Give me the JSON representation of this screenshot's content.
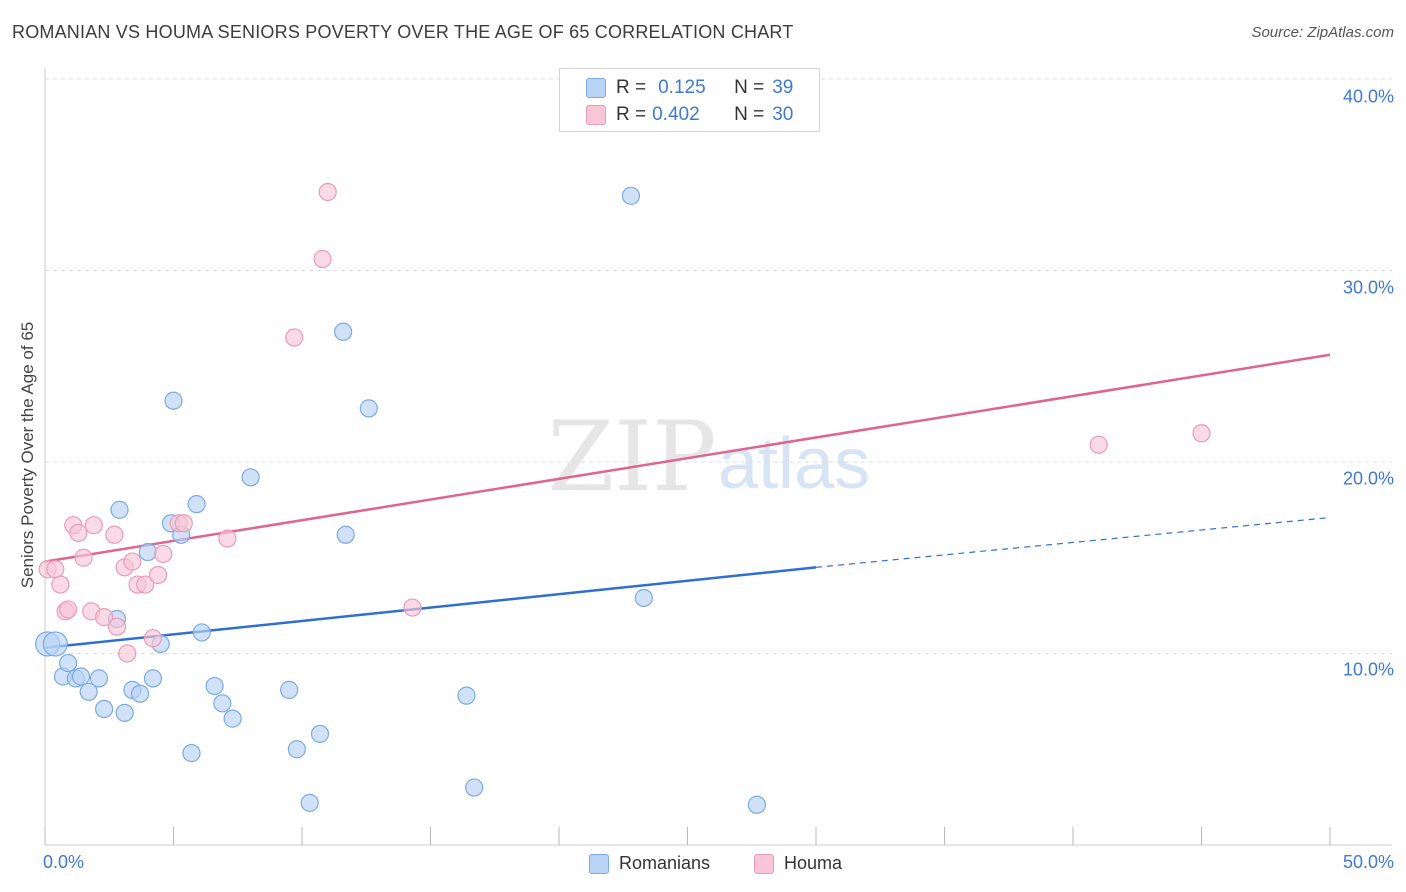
{
  "title": "ROMANIAN VS HOUMA SENIORS POVERTY OVER THE AGE OF 65 CORRELATION CHART",
  "source": "Source: ZipAtlas.com",
  "watermark": {
    "zip": "ZIP",
    "atlas": "atlas"
  },
  "legend": {
    "rows": [
      {
        "r_label": "R =",
        "r_value": "0.125",
        "n_label": "N =",
        "n_value": "39"
      },
      {
        "r_label": "R =",
        "r_value": "0.402",
        "n_label": "N =",
        "n_value": "30"
      }
    ]
  },
  "bottom_legend": {
    "romanians": "Romanians",
    "houma": "Houma"
  },
  "x_tick_labels": {
    "min": "0.0%",
    "max": "50.0%"
  },
  "y_tick_labels": [
    "40.0%",
    "30.0%",
    "20.0%",
    "10.0%"
  ],
  "colors": {
    "romanians_fill": "#b9d3f5",
    "romanians_stroke": "#7aaae6",
    "romanians_line": "#2f6fd0",
    "houma_fill": "#f8c6d6",
    "houma_stroke": "#ec9bb6",
    "houma_line": "#e0648e",
    "grid": "#dddddd",
    "tick_label": "#3f79d6"
  },
  "chart_data": {
    "type": "scatter",
    "title": "ROMANIAN VS HOUMA SENIORS POVERTY OVER THE AGE OF 65 CORRELATION CHART",
    "xlabel": "",
    "ylabel": "Seniors Poverty Over the Age of 65",
    "xlim": [
      0,
      50
    ],
    "ylim": [
      0,
      40
    ],
    "y_ticks": [
      10,
      20,
      30,
      40
    ],
    "grid": true,
    "series": [
      {
        "name": "Romanians",
        "r": 0.125,
        "n": 39,
        "trend": {
          "x0": 0,
          "y0": 10.3,
          "x1": 30,
          "y1": 14.5,
          "dashed_to_x": 50,
          "dashed_to_y": 17.1
        },
        "points": [
          [
            0.1,
            10.5
          ],
          [
            0.4,
            10.5
          ],
          [
            0.7,
            8.8
          ],
          [
            0.9,
            9.5
          ],
          [
            1.2,
            8.7
          ],
          [
            1.4,
            8.8
          ],
          [
            1.7,
            8.0
          ],
          [
            2.1,
            8.7
          ],
          [
            2.3,
            7.1
          ],
          [
            2.8,
            11.8
          ],
          [
            2.9,
            17.5
          ],
          [
            3.1,
            6.9
          ],
          [
            3.4,
            8.1
          ],
          [
            3.7,
            7.9
          ],
          [
            4.0,
            15.3
          ],
          [
            4.2,
            8.7
          ],
          [
            4.5,
            10.5
          ],
          [
            4.9,
            16.8
          ],
          [
            5.0,
            23.2
          ],
          [
            5.3,
            16.2
          ],
          [
            5.7,
            4.8
          ],
          [
            5.9,
            17.8
          ],
          [
            6.1,
            11.1
          ],
          [
            6.6,
            8.3
          ],
          [
            6.9,
            7.4
          ],
          [
            7.3,
            6.6
          ],
          [
            8.0,
            19.2
          ],
          [
            9.5,
            8.1
          ],
          [
            9.8,
            5.0
          ],
          [
            10.3,
            2.2
          ],
          [
            10.7,
            5.8
          ],
          [
            11.6,
            26.8
          ],
          [
            11.7,
            16.2
          ],
          [
            12.6,
            22.8
          ],
          [
            16.4,
            7.8
          ],
          [
            16.7,
            3.0
          ],
          [
            22.8,
            33.9
          ],
          [
            23.3,
            12.9
          ],
          [
            27.7,
            2.1
          ]
        ]
      },
      {
        "name": "Houma",
        "r": 0.402,
        "n": 30,
        "trend": {
          "x0": 0,
          "y0": 14.8,
          "x1": 50,
          "y1": 25.6
        },
        "points": [
          [
            0.1,
            14.4
          ],
          [
            0.4,
            14.4
          ],
          [
            0.6,
            13.6
          ],
          [
            0.8,
            12.2
          ],
          [
            0.9,
            12.3
          ],
          [
            1.1,
            16.7
          ],
          [
            1.3,
            16.3
          ],
          [
            1.5,
            15.0
          ],
          [
            1.8,
            12.2
          ],
          [
            1.9,
            16.7
          ],
          [
            2.3,
            11.9
          ],
          [
            2.7,
            16.2
          ],
          [
            2.8,
            11.4
          ],
          [
            3.1,
            14.5
          ],
          [
            3.2,
            10.0
          ],
          [
            3.4,
            14.8
          ],
          [
            3.6,
            13.6
          ],
          [
            3.9,
            13.6
          ],
          [
            4.2,
            10.8
          ],
          [
            4.4,
            14.1
          ],
          [
            4.6,
            15.2
          ],
          [
            5.2,
            16.8
          ],
          [
            5.4,
            16.8
          ],
          [
            7.1,
            16.0
          ],
          [
            9.7,
            26.5
          ],
          [
            10.8,
            30.6
          ],
          [
            11.0,
            34.1
          ],
          [
            14.3,
            12.4
          ],
          [
            41.0,
            20.9
          ],
          [
            45.0,
            21.5
          ]
        ]
      }
    ]
  }
}
